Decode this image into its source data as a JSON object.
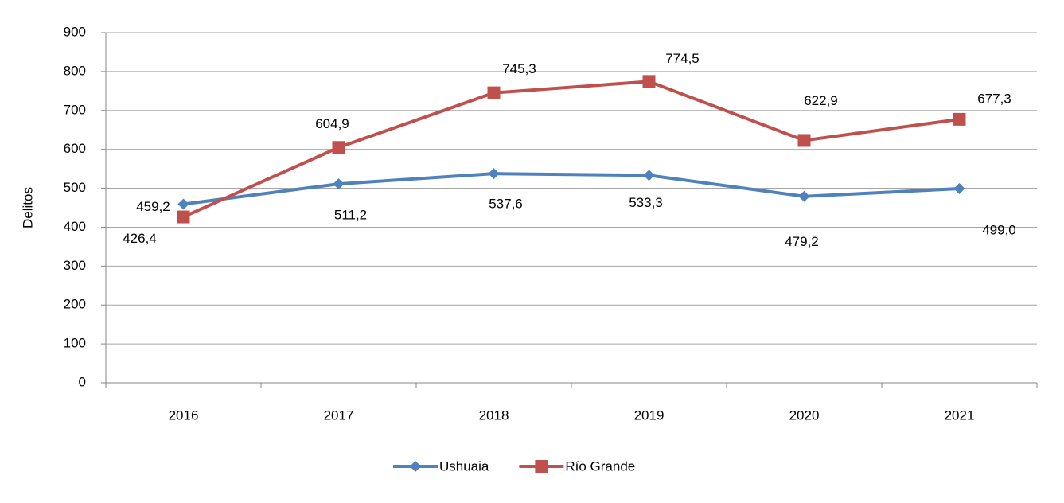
{
  "chart_data": {
    "type": "line",
    "y_label": "Delitos",
    "categories": [
      "2016",
      "2017",
      "2018",
      "2019",
      "2020",
      "2021"
    ],
    "series": [
      {
        "name": "Ushuaia",
        "color": "#4f81bd",
        "marker": "diamond",
        "values": [
          459.2,
          511.2,
          537.6,
          533.3,
          479.2,
          499.0
        ],
        "value_labels": [
          "459,2",
          "511,2",
          "537,6",
          "533,3",
          "479,2",
          "499,0"
        ]
      },
      {
        "name": "Río Grande",
        "color": "#c0504d",
        "marker": "square",
        "values": [
          426.4,
          604.9,
          745.3,
          774.5,
          622.9,
          677.3
        ],
        "value_labels": [
          "426,4",
          "604,9",
          "745,3",
          "774,5",
          "622,9",
          "677,3"
        ]
      }
    ],
    "ylim": [
      0,
      900
    ],
    "yticks": [
      0,
      100,
      200,
      300,
      400,
      500,
      600,
      700,
      800,
      900
    ],
    "grid": true,
    "legend": "bottom"
  }
}
